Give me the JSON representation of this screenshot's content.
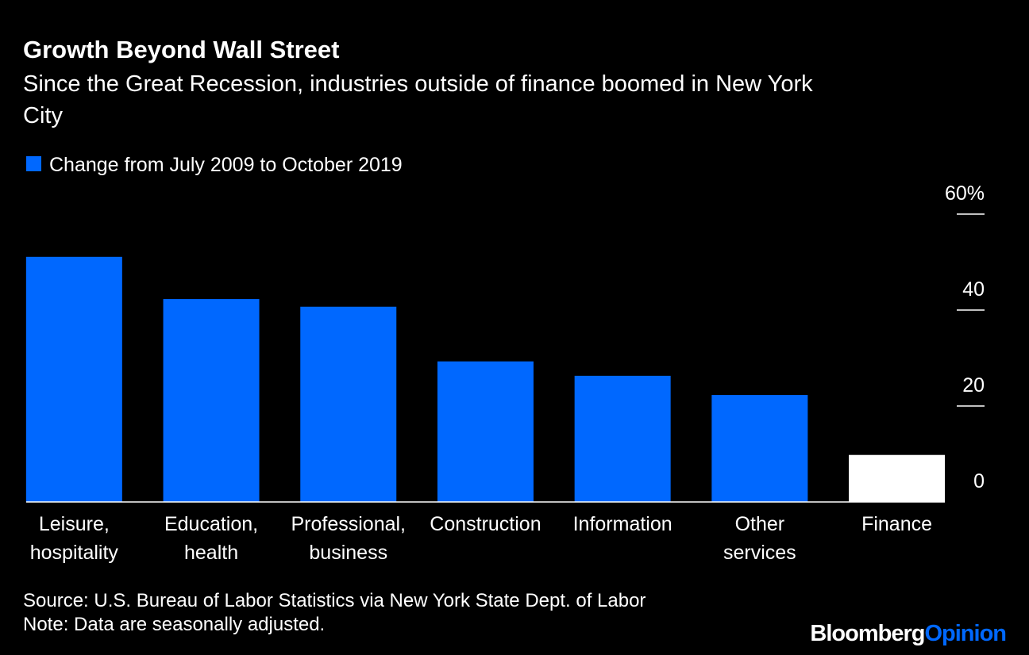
{
  "chart_data": {
    "type": "bar",
    "title": "Growth Beyond Wall Street",
    "subtitle": "Since the Great Recession, industries outside of finance boomed in New York City",
    "categories": [
      "Leisure, hospitality",
      "Education, health",
      "Professional, business",
      "Construction",
      "Information",
      "Other services",
      "Finance"
    ],
    "series": [
      {
        "name": "Change from July 2009 to October 2019",
        "color": "#0068ff",
        "values": [
          51.1,
          42.3,
          40.7,
          29.3,
          26.3,
          22.3,
          9.8
        ],
        "colors": [
          "#0068ff",
          "#0068ff",
          "#0068ff",
          "#0068ff",
          "#0068ff",
          "#0068ff",
          "#ffffff"
        ]
      }
    ],
    "ylim": [
      0,
      60
    ],
    "yticks": [
      0,
      20,
      40,
      {
        "value": 60,
        "label": "60%"
      }
    ],
    "source": "Source: U.S. Bureau of Labor Statistics via New York State Dept. of Labor",
    "note": "Note: Data are seasonally adjusted.",
    "logo": {
      "brand": "Bloomberg",
      "suffix": "Opinion"
    }
  }
}
